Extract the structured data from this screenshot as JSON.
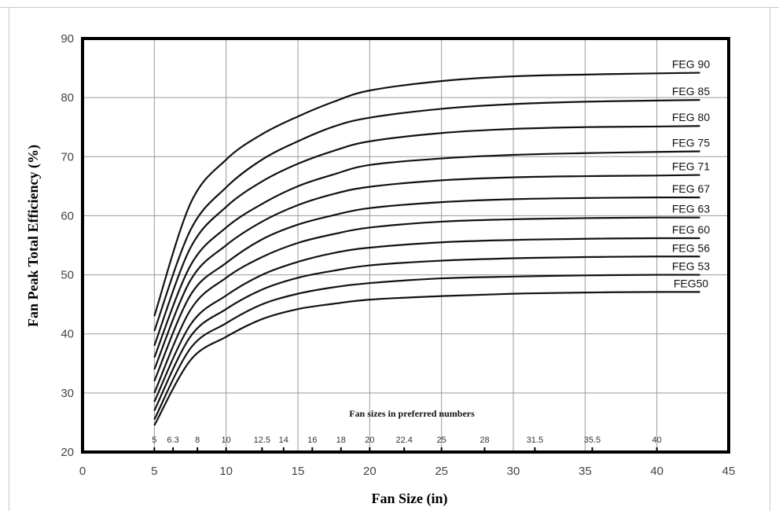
{
  "chart_data": {
    "type": "line",
    "title": "",
    "xlabel": "Fan Size (in)",
    "ylabel": "Fan Peak Total Efficiency (%)",
    "xlim": [
      0,
      45
    ],
    "ylim": [
      20,
      90
    ],
    "xticks": [
      0,
      5,
      10,
      15,
      20,
      25,
      30,
      35,
      40,
      45
    ],
    "yticks": [
      20,
      30,
      40,
      50,
      60,
      70,
      80,
      90
    ],
    "grid": true,
    "inset_caption": "Fan sizes in preferred numbers",
    "preferred_sizes": [
      "5",
      "6.3",
      "8",
      "10",
      "12.5",
      "14",
      "16",
      "18",
      "20",
      "22.4",
      "25",
      "28",
      "31.5",
      "35.5",
      "40"
    ],
    "x": [
      5,
      7.5,
      10,
      12.5,
      15,
      17.5,
      20,
      25,
      30,
      35,
      40,
      43
    ],
    "series": [
      {
        "name": "FEG 90",
        "values": [
          43,
          62,
          69.5,
          73.8,
          76.8,
          79.3,
          81.2,
          82.8,
          83.6,
          83.9,
          84.1,
          84.2
        ]
      },
      {
        "name": "FEG 85",
        "values": [
          40.5,
          57.5,
          64.8,
          69.5,
          72.6,
          75.1,
          76.6,
          78.1,
          78.9,
          79.3,
          79.5,
          79.6
        ]
      },
      {
        "name": "FEG 80",
        "values": [
          38,
          54.5,
          61.5,
          65.8,
          68.8,
          71,
          72.6,
          74,
          74.7,
          75,
          75.1,
          75.2
        ]
      },
      {
        "name": "FEG 75",
        "values": [
          36,
          51.5,
          58,
          62,
          65,
          67,
          68.6,
          69.7,
          70.3,
          70.6,
          70.8,
          70.9
        ]
      },
      {
        "name": "FEG 71",
        "values": [
          34,
          49,
          55,
          59,
          61.8,
          63.7,
          64.9,
          66,
          66.5,
          66.7,
          66.8,
          66.9
        ]
      },
      {
        "name": "FEG 67",
        "values": [
          32,
          46.5,
          52,
          56,
          58.5,
          60.1,
          61.3,
          62.3,
          62.8,
          63,
          63.1,
          63.1
        ]
      },
      {
        "name": "FEG 63",
        "values": [
          30,
          44,
          49.5,
          53,
          55.4,
          56.9,
          58,
          59,
          59.4,
          59.6,
          59.7,
          59.7
        ]
      },
      {
        "name": "FEG 60",
        "values": [
          28.5,
          41.5,
          46.5,
          50,
          52.2,
          53.7,
          54.6,
          55.5,
          55.9,
          56.1,
          56.2,
          56.2
        ]
      },
      {
        "name": "FEG 56",
        "values": [
          27,
          39.5,
          44.2,
          47.5,
          49.5,
          50.7,
          51.6,
          52.4,
          52.8,
          53,
          53.1,
          53.1
        ]
      },
      {
        "name": "FEG 53",
        "values": [
          25.5,
          37.5,
          41.8,
          45,
          46.8,
          47.9,
          48.6,
          49.4,
          49.7,
          49.9,
          50,
          50
        ]
      },
      {
        "name": "FEG50",
        "values": [
          24.5,
          35.5,
          39.5,
          42.5,
          44.2,
          45.1,
          45.8,
          46.4,
          46.8,
          47,
          47.1,
          47.1
        ]
      }
    ]
  }
}
